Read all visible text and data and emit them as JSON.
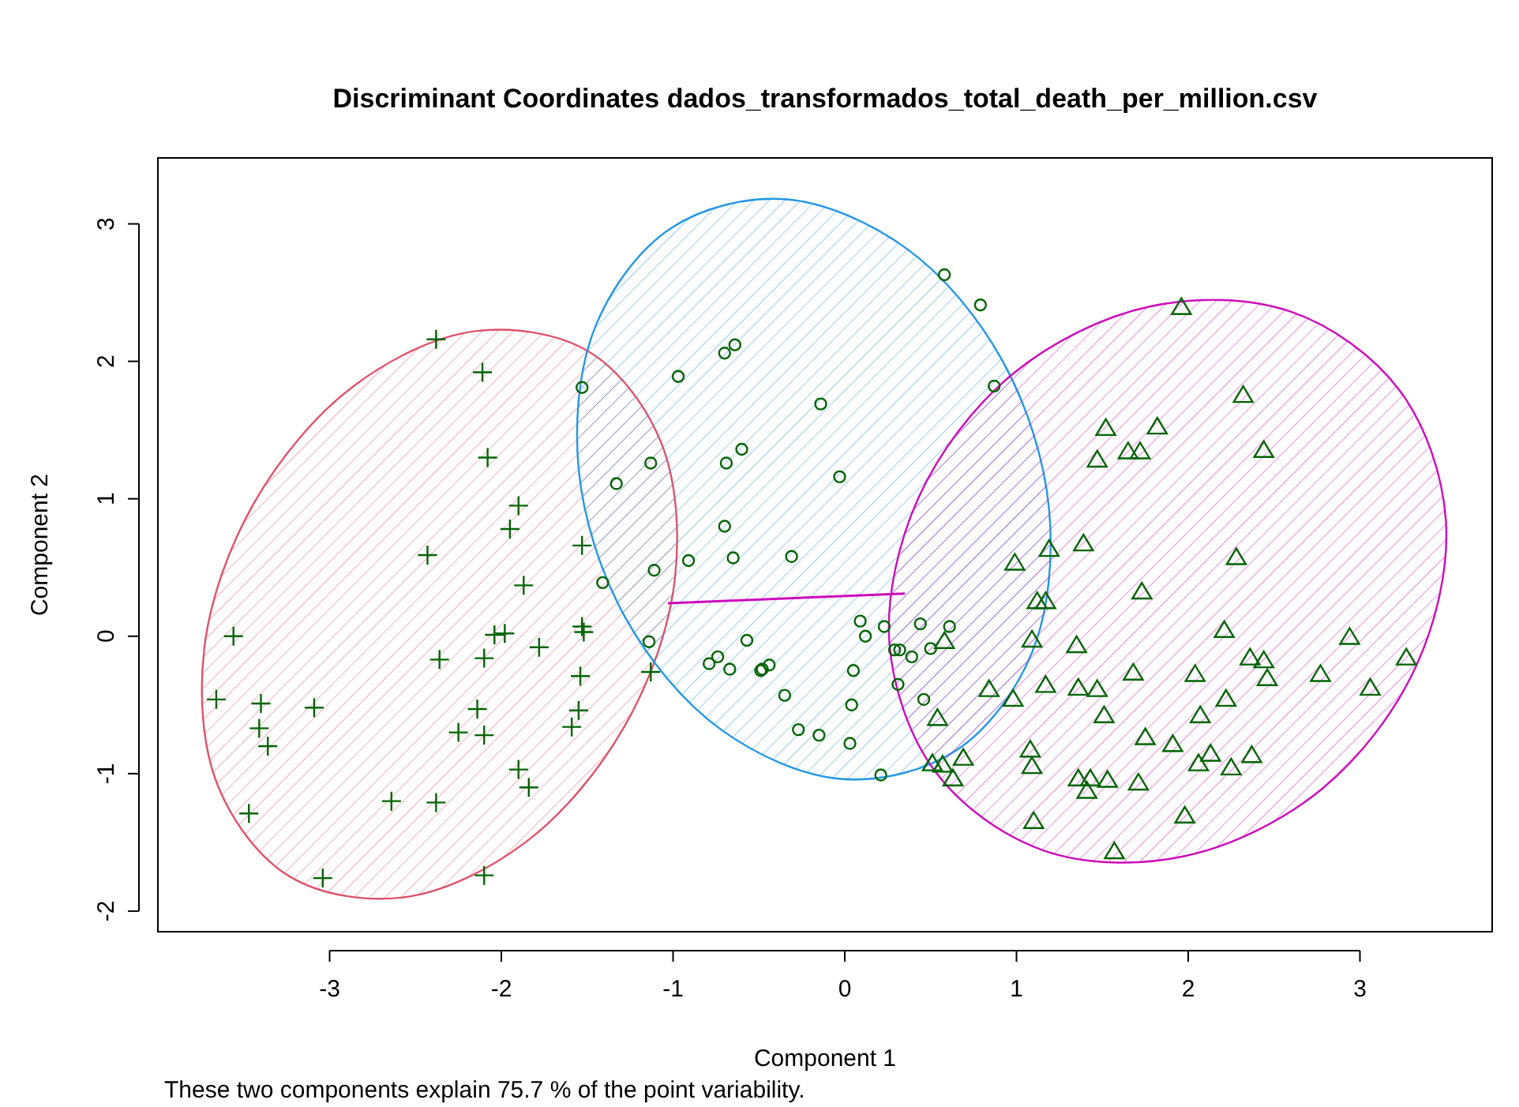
{
  "chart_data": {
    "type": "scatter",
    "title": "Discriminant Coordinates dados_transformados_total_death_per_million.csv",
    "xlabel": "Component 1",
    "ylabel": "Component 2",
    "annotations": [
      "These two components explain 75.7 % of the point variability."
    ],
    "xlim": [
      -4.0,
      3.77
    ],
    "ylim": [
      -2.15,
      3.48
    ],
    "xticks": [
      -3,
      -2,
      -1,
      0,
      1,
      2,
      3
    ],
    "yticks": [
      -2,
      -1,
      0,
      1,
      2,
      3
    ],
    "grid": false,
    "series": [
      {
        "type": "area",
        "color": "#df536b",
        "x": [
          -0.99,
          -1.07,
          -1.49,
          -2.15,
          -2.86,
          -3.44,
          -3.73,
          -3.65,
          -3.23,
          -2.57,
          -1.86,
          -1.28
        ],
        "values": [
          0.41,
          1.41,
          2.07,
          2.22,
          1.82,
          0.97,
          -0.09,
          -1.09,
          -1.75,
          -1.9,
          -1.5,
          -0.65
        ]
      },
      {
        "type": "area",
        "color": "#2297e6",
        "x": [
          1.19,
          0.92,
          0.36,
          -0.35,
          -1.01,
          -1.45,
          -1.55,
          -1.28,
          -0.72,
          -0.01,
          0.65,
          1.09
        ],
        "values": [
          0.92,
          2.0,
          2.82,
          3.18,
          2.97,
          2.26,
          1.22,
          0.14,
          -0.68,
          -1.04,
          -0.83,
          -0.12
        ]
      },
      {
        "type": "area",
        "color": "#cd0bbc",
        "x": [
          3.5,
          3.23,
          2.6,
          1.78,
          0.98,
          0.43,
          0.26,
          0.53,
          1.16,
          1.98,
          2.78,
          3.33
        ],
        "values": [
          0.85,
          1.79,
          2.36,
          2.4,
          1.91,
          1.01,
          -0.05,
          -0.99,
          -1.56,
          -1.6,
          -1.11,
          -0.21
        ]
      },
      {
        "type": "line",
        "color": "#cd0bbc",
        "x": [
          -1.03,
          0.35
        ],
        "values": [
          0.24,
          0.31
        ]
      },
      {
        "marker": "cross",
        "color": "#006400",
        "x": [
          -2.38,
          -2.11,
          -2.08,
          -1.9,
          -1.95,
          -2.43,
          -1.87,
          -1.53,
          -3.56,
          -3.66,
          -3.4,
          -3.41,
          -3.36,
          -3.09,
          -3.47,
          -3.04,
          -2.36,
          -2.04,
          -2.1,
          -1.98,
          -1.78,
          -1.53,
          -1.52,
          -2.14,
          -2.25,
          -2.1,
          -1.54,
          -1.55,
          -1.59,
          -1.9,
          -1.84,
          -2.64,
          -2.38,
          -2.1,
          -1.13
        ],
        "values": [
          2.16,
          1.92,
          1.3,
          0.95,
          0.78,
          0.59,
          0.37,
          0.66,
          0.0,
          -0.46,
          -0.49,
          -0.67,
          -0.8,
          -0.52,
          -1.29,
          -1.76,
          -0.17,
          0.01,
          -0.16,
          0.02,
          -0.08,
          0.07,
          0.03,
          -0.53,
          -0.7,
          -0.72,
          -0.29,
          -0.54,
          -0.66,
          -0.97,
          -1.1,
          -1.2,
          -1.21,
          -1.74,
          -0.26
        ]
      },
      {
        "marker": "circle",
        "color": "#006400",
        "x": [
          0.58,
          0.79,
          -0.64,
          -0.7,
          -0.97,
          -1.53,
          0.87,
          -0.14,
          -0.6,
          -0.69,
          -1.13,
          -1.33,
          -0.03,
          -0.7,
          -0.91,
          -0.65,
          -0.31,
          -1.11,
          -1.41,
          -1.14,
          -0.57,
          -0.79,
          -0.74,
          -0.67,
          -0.49,
          -0.44,
          -0.48,
          -0.35,
          -0.27,
          -0.15,
          0.03,
          0.04,
          0.05,
          0.09,
          0.12,
          0.23,
          0.29,
          0.32,
          0.39,
          0.44,
          0.5,
          0.61,
          0.31,
          0.46,
          0.21
        ],
        "values": [
          2.63,
          2.41,
          2.12,
          2.06,
          1.89,
          1.81,
          1.82,
          1.69,
          1.36,
          1.26,
          1.26,
          1.11,
          1.16,
          0.8,
          0.55,
          0.57,
          0.58,
          0.48,
          0.39,
          -0.04,
          -0.03,
          -0.2,
          -0.15,
          -0.24,
          -0.25,
          -0.21,
          -0.24,
          -0.43,
          -0.68,
          -0.72,
          -0.78,
          -0.5,
          -0.25,
          0.11,
          0.0,
          0.07,
          -0.1,
          -0.1,
          -0.15,
          0.09,
          -0.09,
          0.07,
          -0.35,
          -0.46,
          -1.01
        ]
      },
      {
        "marker": "triangle",
        "color": "#006400",
        "x": [
          1.96,
          2.32,
          1.52,
          1.82,
          1.65,
          1.72,
          1.47,
          2.44,
          1.39,
          1.19,
          0.99,
          2.28,
          1.73,
          1.12,
          1.17,
          2.21,
          1.09,
          1.35,
          2.94,
          3.27,
          2.36,
          2.44,
          2.46,
          2.77,
          3.06,
          2.04,
          1.68,
          2.22,
          2.07,
          0.84,
          0.98,
          1.17,
          1.36,
          1.47,
          1.51,
          1.75,
          1.91,
          2.13,
          2.06,
          2.25,
          2.37,
          0.54,
          0.69,
          0.51,
          0.57,
          0.63,
          1.08,
          1.09,
          1.36,
          1.43,
          1.41,
          1.53,
          1.71,
          1.1,
          1.98,
          1.57,
          0.58
        ],
        "values": [
          2.39,
          1.75,
          1.51,
          1.52,
          1.34,
          1.34,
          1.28,
          1.35,
          0.67,
          0.63,
          0.53,
          0.57,
          0.32,
          0.25,
          0.25,
          0.04,
          -0.03,
          -0.07,
          -0.01,
          -0.16,
          -0.16,
          -0.18,
          -0.31,
          -0.28,
          -0.38,
          -0.28,
          -0.27,
          -0.46,
          -0.58,
          -0.39,
          -0.46,
          -0.36,
          -0.38,
          -0.39,
          -0.58,
          -0.74,
          -0.79,
          -0.86,
          -0.93,
          -0.96,
          -0.87,
          -0.6,
          -0.89,
          -0.93,
          -0.94,
          -1.04,
          -0.83,
          -0.95,
          -1.04,
          -1.04,
          -1.13,
          -1.05,
          -1.07,
          -1.35,
          -1.31,
          -1.57,
          -0.04
        ]
      }
    ]
  }
}
